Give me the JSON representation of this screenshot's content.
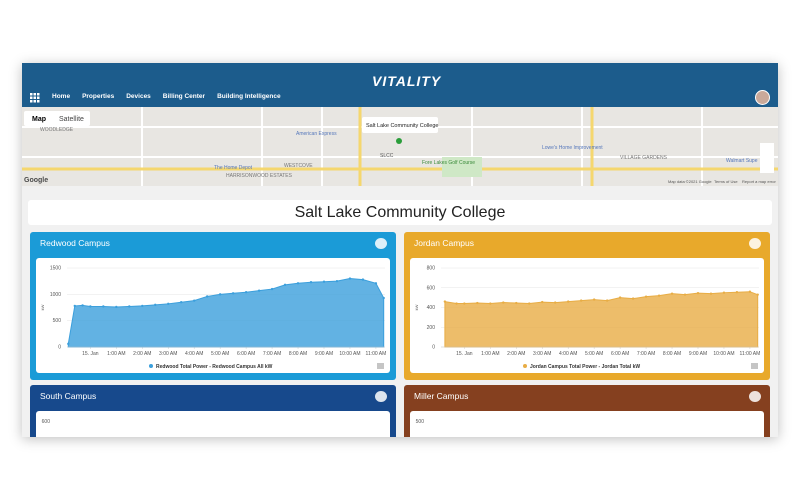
{
  "header": {
    "logo": "VITALITY",
    "nav": [
      "Home",
      "Properties",
      "Devices",
      "Billing Center",
      "Building Intelligence"
    ]
  },
  "map": {
    "buttons": [
      "Map",
      "Satellite"
    ],
    "popup": "Salt Lake Community College",
    "labels": [
      "WOODLEDGE",
      "American Express",
      "WESTCOVE",
      "HARRISONWOOD ESTATES",
      "The Home Depot",
      "SLCC",
      "Fore Lakes Golf Course",
      "Lowe's Home Improvement",
      "VILLAGE GARDENS",
      "Walmart Supe"
    ],
    "brand": "Google",
    "footer": [
      "Map data ©2021 Google",
      "Terms of Use",
      "Report a map error"
    ]
  },
  "page_title": "Salt Lake Community College",
  "chart_data": [
    {
      "type": "area",
      "title": "Redwood Campus",
      "panel_color": "#1b9bd7",
      "ylabel": "kW",
      "x": [
        -0.85,
        -0.6,
        -0.3,
        0,
        0.5,
        1,
        1.5,
        2,
        2.5,
        3,
        3.5,
        4,
        4.5,
        5,
        5.5,
        6,
        6.5,
        7,
        7.5,
        8,
        8.5,
        9,
        9.5,
        10,
        10.5,
        11,
        11.3
      ],
      "series": [
        {
          "name": "Redwood Total Power - Redwood Campus All kW",
          "color": "#3b9fdc",
          "values": [
            60,
            780,
            790,
            770,
            770,
            760,
            770,
            780,
            800,
            820,
            850,
            880,
            960,
            1000,
            1020,
            1040,
            1070,
            1100,
            1180,
            1210,
            1230,
            1240,
            1250,
            1300,
            1280,
            1210,
            930
          ]
        }
      ],
      "xlim": [
        -0.9,
        11.35
      ],
      "ylim": [
        0,
        1500
      ],
      "yticks": [
        0,
        500,
        1000,
        1500
      ],
      "xticks": [
        {
          "value": 0,
          "label": "15. Jan"
        },
        {
          "value": 1,
          "label": "1:00 AM"
        },
        {
          "value": 2,
          "label": "2:00 AM"
        },
        {
          "value": 3,
          "label": "3:00 AM"
        },
        {
          "value": 4,
          "label": "4:00 AM"
        },
        {
          "value": 5,
          "label": "5:00 AM"
        },
        {
          "value": 6,
          "label": "6:00 AM"
        },
        {
          "value": 7,
          "label": "7:00 AM"
        },
        {
          "value": 8,
          "label": "8:00 AM"
        },
        {
          "value": 9,
          "label": "9:00 AM"
        },
        {
          "value": 10,
          "label": "10:00 AM"
        },
        {
          "value": 11,
          "label": "11:00 AM"
        }
      ]
    },
    {
      "type": "area",
      "title": "Jordan Campus",
      "panel_color": "#e8a92b",
      "ylabel": "kW",
      "x": [
        -0.75,
        -0.3,
        0,
        0.5,
        1,
        1.5,
        2,
        2.5,
        3,
        3.5,
        4,
        4.5,
        5,
        5.5,
        6,
        6.5,
        7,
        7.5,
        8,
        8.5,
        9,
        9.5,
        10,
        10.5,
        11,
        11.3
      ],
      "series": [
        {
          "name": "Jordan Campus Total Power - Jordan Total kW",
          "color": "#e8ad45",
          "values": [
            460,
            440,
            440,
            445,
            440,
            450,
            445,
            440,
            455,
            450,
            460,
            470,
            480,
            470,
            500,
            490,
            510,
            520,
            540,
            530,
            545,
            540,
            550,
            555,
            560,
            530
          ]
        }
      ],
      "xlim": [
        -0.9,
        11.35
      ],
      "ylim": [
        0,
        800
      ],
      "yticks": [
        0,
        200,
        400,
        600,
        800
      ],
      "xticks": [
        {
          "value": 0,
          "label": "15. Jan"
        },
        {
          "value": 1,
          "label": "1:00 AM"
        },
        {
          "value": 2,
          "label": "2:00 AM"
        },
        {
          "value": 3,
          "label": "3:00 AM"
        },
        {
          "value": 4,
          "label": "4:00 AM"
        },
        {
          "value": 5,
          "label": "5:00 AM"
        },
        {
          "value": 6,
          "label": "6:00 AM"
        },
        {
          "value": 7,
          "label": "7:00 AM"
        },
        {
          "value": 8,
          "label": "8:00 AM"
        },
        {
          "value": 9,
          "label": "9:00 AM"
        },
        {
          "value": 10,
          "label": "10:00 AM"
        },
        {
          "value": 11,
          "label": "11:00 AM"
        }
      ]
    },
    {
      "type": "area",
      "title": "South Campus",
      "panel_color": "#17498c",
      "yticks": [
        600
      ]
    },
    {
      "type": "area",
      "title": "Miller Campus",
      "panel_color": "#85401f",
      "yticks": [
        500
      ]
    }
  ]
}
